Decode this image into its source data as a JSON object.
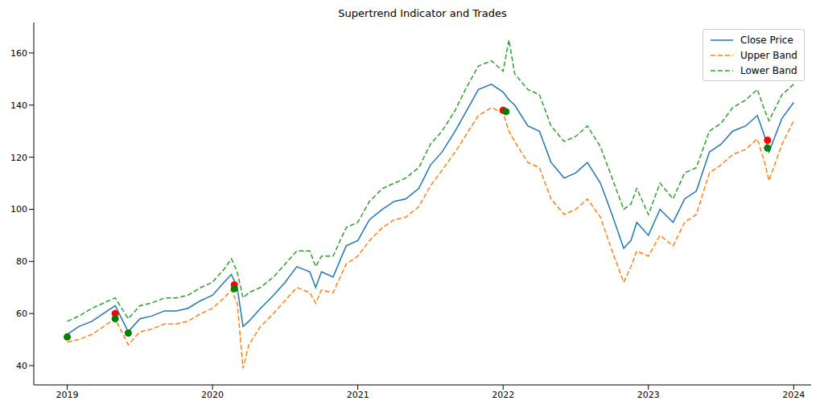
{
  "chart_data": {
    "type": "line",
    "title": "Supertrend Indicator and Trades",
    "x": [
      2019.0,
      2019.08,
      2019.17,
      2019.25,
      2019.33,
      2019.42,
      2019.5,
      2019.58,
      2019.67,
      2019.75,
      2019.83,
      2019.92,
      2020.0,
      2020.08,
      2020.13,
      2020.17,
      2020.21,
      2020.25,
      2020.33,
      2020.42,
      2020.5,
      2020.58,
      2020.67,
      2020.71,
      2020.75,
      2020.83,
      2020.92,
      2021.0,
      2021.08,
      2021.17,
      2021.25,
      2021.33,
      2021.42,
      2021.5,
      2021.58,
      2021.67,
      2021.75,
      2021.83,
      2021.92,
      2022.0,
      2022.04,
      2022.08,
      2022.17,
      2022.25,
      2022.33,
      2022.42,
      2022.5,
      2022.58,
      2022.67,
      2022.75,
      2022.83,
      2022.88,
      2022.92,
      2023.0,
      2023.08,
      2023.17,
      2023.25,
      2023.33,
      2023.42,
      2023.5,
      2023.58,
      2023.67,
      2023.75,
      2023.8,
      2023.83,
      2023.92,
      2024.0
    ],
    "series": [
      {
        "name": "Close Price",
        "color": "#1f77b4",
        "line_style": "solid",
        "values": [
          52,
          55,
          57,
          60,
          63,
          53,
          58,
          59,
          61,
          61,
          62,
          65,
          67,
          72,
          75,
          70,
          55,
          57,
          62,
          67,
          72,
          78,
          76,
          70,
          76,
          74,
          86,
          88,
          96,
          100,
          103,
          104,
          108,
          117,
          122,
          130,
          138,
          146,
          148,
          145,
          142,
          140,
          132,
          130,
          118,
          112,
          114,
          118,
          110,
          98,
          85,
          88,
          95,
          90,
          100,
          95,
          104,
          107,
          122,
          125,
          130,
          132,
          136,
          128,
          122,
          135,
          141
        ]
      },
      {
        "name": "Upper Band",
        "color": "#ff7f0e",
        "line_style": "dashed",
        "values": [
          49,
          50,
          52,
          55,
          58,
          48,
          53,
          54,
          56,
          56,
          57,
          60,
          62,
          66,
          69,
          64,
          39,
          48,
          55,
          60,
          65,
          70,
          68,
          64,
          69,
          68,
          79,
          82,
          88,
          93,
          96,
          97,
          101,
          109,
          115,
          122,
          129,
          136,
          139,
          137,
          130,
          126,
          118,
          116,
          104,
          98,
          100,
          104,
          97,
          84,
          72,
          78,
          84,
          82,
          90,
          86,
          95,
          98,
          114,
          117,
          121,
          123,
          127,
          118,
          111,
          125,
          134
        ]
      },
      {
        "name": "Lower Band",
        "color": "#2ca02c",
        "line_style": "dashed",
        "values": [
          57,
          59,
          62,
          64,
          66,
          58,
          63,
          64,
          66,
          66,
          67,
          70,
          72,
          77,
          81,
          76,
          66,
          68,
          70,
          74,
          79,
          84,
          84,
          78,
          82,
          82,
          93,
          95,
          103,
          108,
          110,
          112,
          116,
          125,
          130,
          138,
          147,
          155,
          157,
          153,
          165,
          152,
          146,
          144,
          132,
          126,
          128,
          132,
          124,
          112,
          100,
          102,
          108,
          98,
          110,
          104,
          114,
          116,
          130,
          133,
          139,
          142,
          146,
          138,
          134,
          144,
          148
        ]
      },
      {
        "type": "scatter",
        "marker": "circle",
        "color": "red",
        "x": [
          2019.33,
          2020.15,
          2022.0,
          2023.82
        ],
        "values": [
          60,
          71,
          138,
          126.5
        ]
      },
      {
        "type": "scatter",
        "marker": "circle",
        "color": "green",
        "x": [
          2019.0,
          2019.33,
          2019.42,
          2020.15,
          2022.02,
          2023.82
        ],
        "values": [
          51,
          58,
          52.5,
          69.5,
          137.5,
          123.5
        ]
      }
    ],
    "xlim": [
      2018.77,
      2024.12
    ],
    "xticks": [
      2019,
      2020,
      2021,
      2022,
      2023,
      2024
    ],
    "ylim": [
      32.6,
      171.7
    ],
    "yticks": [
      40,
      60,
      80,
      100,
      120,
      140,
      160
    ],
    "grid": false,
    "legend": "upper right"
  }
}
